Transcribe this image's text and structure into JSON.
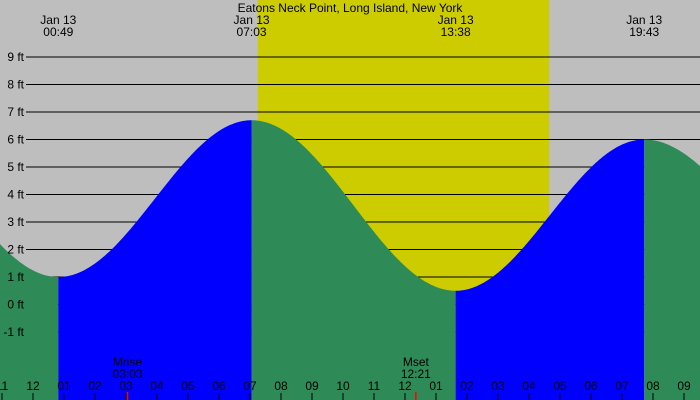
{
  "chart_data": {
    "type": "area",
    "title": "Eatons Neck Point, Long Island, New York",
    "y_unit": "ft",
    "ylim": [
      -1,
      9
    ],
    "y_ticks": [
      9,
      8,
      7,
      6,
      5,
      4,
      3,
      2,
      1,
      0,
      -1
    ],
    "x_tick_labels": [
      "11",
      "12",
      "01",
      "02",
      "03",
      "04",
      "05",
      "06",
      "07",
      "08",
      "09",
      "10",
      "11",
      "12",
      "01",
      "02",
      "03",
      "04",
      "05",
      "06",
      "07",
      "08",
      "09"
    ],
    "grid": true,
    "extremes": [
      {
        "date": "Jan 13",
        "time": "00:49",
        "type": "low",
        "height_ft": 1.0
      },
      {
        "date": "Jan 13",
        "time": "07:03",
        "type": "high",
        "height_ft": 6.7
      },
      {
        "date": "Jan 13",
        "time": "13:38",
        "type": "low",
        "height_ft": 0.5
      },
      {
        "date": "Jan 13",
        "time": "19:43",
        "type": "high",
        "height_ft": 6.0
      }
    ],
    "daylight": {
      "start": "07:15",
      "end": "16:39"
    },
    "moon_events": [
      {
        "label": "Mrise",
        "time": "03:03"
      },
      {
        "label": "Mset",
        "time": "12:21"
      }
    ],
    "colors": {
      "night": "#bebebe",
      "day": "#cccc00",
      "rising": "#0000ff",
      "falling": "#2e8b57",
      "moon_tick": "#ff0000"
    }
  }
}
